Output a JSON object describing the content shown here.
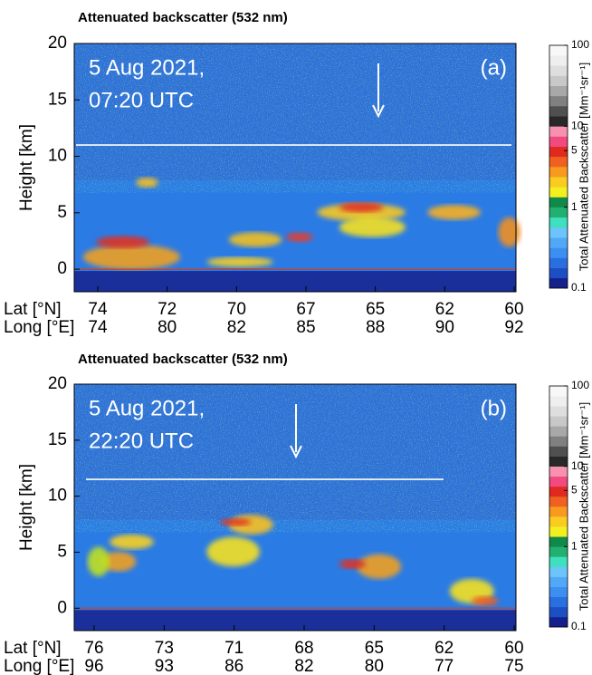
{
  "chart_data": [
    {
      "type": "curtain",
      "title": "Attenuated backscatter (532 nm)",
      "annotation": [
        "5 Aug 2021,",
        "07:20 UTC"
      ],
      "panel_label": "(a)",
      "ylabel": "Height [km]",
      "ylim": [
        -2,
        20
      ],
      "yticks": [
        0,
        5,
        10,
        15,
        20
      ],
      "hline": 11,
      "x_row_labels": [
        "Lat [°N]",
        "Long [°E]"
      ],
      "lat": [
        74,
        72,
        70,
        67,
        65,
        62,
        60
      ],
      "long": [
        74,
        80,
        82,
        85,
        88,
        90,
        92
      ],
      "colorbar": {
        "label": "Total Attenuated Backscatter [Mm⁻¹sr⁻¹]",
        "scale": "log",
        "lim": [
          0.1,
          100
        ],
        "ticks": [
          0.1,
          1,
          5,
          10,
          100
        ],
        "colors": [
          "#14208c",
          "#1d4fc4",
          "#2a6fe0",
          "#3c8ff0",
          "#52a8f6",
          "#6cc4fa",
          "#3fe0c0",
          "#22b070",
          "#108a48",
          "#f4f020",
          "#f8cc20",
          "#f89a20",
          "#f06020",
          "#e02a20",
          "#f04a80",
          "#f890b0",
          "#282828",
          "#505050",
          "#808080",
          "#a8a8a8",
          "#c8c8c8",
          "#dedede",
          "#eeeeee",
          "#f8f8f8"
        ]
      }
    },
    {
      "type": "curtain",
      "title": "Attenuated backscatter (532 nm)",
      "annotation": [
        "5 Aug 2021,",
        "22:20 UTC"
      ],
      "panel_label": "(b)",
      "ylabel": "Height [km]",
      "ylim": [
        -2,
        20
      ],
      "yticks": [
        0,
        5,
        10,
        15,
        20
      ],
      "hline": 11.5,
      "x_row_labels": [
        "Lat [°N]",
        "Long [°E]"
      ],
      "lat": [
        76,
        73,
        71,
        68,
        65,
        62,
        60
      ],
      "long": [
        96,
        93,
        86,
        82,
        80,
        77,
        75
      ],
      "colorbar": {
        "label": "Total Attenuated Backscatter [Mm⁻¹sr⁻¹]",
        "scale": "log",
        "lim": [
          0.1,
          100
        ],
        "ticks": [
          0.1,
          1,
          5,
          10,
          100
        ],
        "colors": [
          "#14208c",
          "#1d4fc4",
          "#2a6fe0",
          "#3c8ff0",
          "#52a8f6",
          "#6cc4fa",
          "#3fe0c0",
          "#22b070",
          "#108a48",
          "#f4f020",
          "#f8cc20",
          "#f89a20",
          "#f06020",
          "#e02a20",
          "#f04a80",
          "#f890b0",
          "#282828",
          "#505050",
          "#808080",
          "#a8a8a8",
          "#c8c8c8",
          "#dedede",
          "#eeeeee",
          "#f8f8f8"
        ]
      }
    }
  ]
}
